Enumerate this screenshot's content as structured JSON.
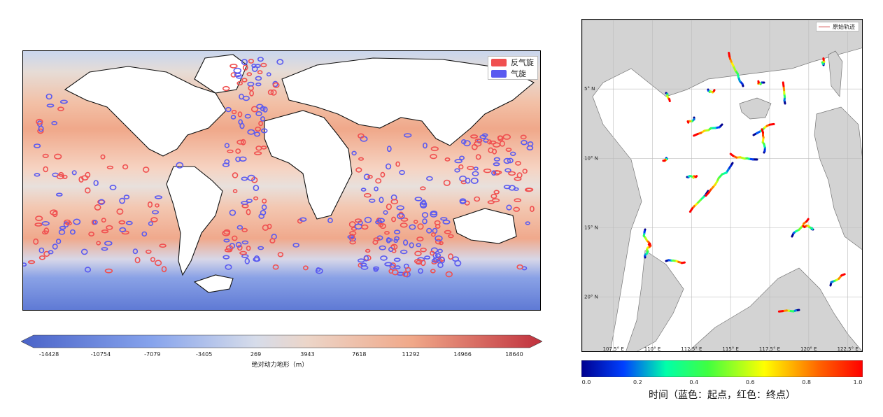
{
  "left_chart": {
    "legend": [
      {
        "label": "反气旋",
        "color": "#f05050"
      },
      {
        "label": "气旋",
        "color": "#5a5af0"
      }
    ],
    "colorbar": {
      "ticks": [
        "-14428",
        "-10754",
        "-7079",
        "-3405",
        "269",
        "3943",
        "7618",
        "11292",
        "14966",
        "18640"
      ],
      "label": "绝对动力地形（m）",
      "cmap": "coolwarm"
    }
  },
  "right_chart": {
    "legend_label": "原始轨迹",
    "legend_color": "#d04040",
    "x_ticks": [
      "107.5° E",
      "110° E",
      "112.5° E",
      "115° E",
      "117.5° E",
      "120° E",
      "122.5° E"
    ],
    "y_ticks": [
      "20° N",
      "15° N",
      "10° N",
      "5° N"
    ],
    "colorbar": {
      "ticks": [
        "0.0",
        "0.2",
        "0.4",
        "0.6",
        "0.8",
        "1.0"
      ],
      "label": "时间（蓝色：起点，红色：终点）",
      "cmap": "jet"
    }
  },
  "chart_data": [
    {
      "type": "heatmap",
      "title": "",
      "variable": "绝对动力地形（m）",
      "colorbar_range": [
        -14428,
        18640
      ],
      "colorbar_ticks": [
        -14428,
        -10754,
        -7079,
        -3405,
        269,
        3943,
        7618,
        11292,
        14966,
        18640
      ],
      "series": [
        {
          "name": "反气旋",
          "color": "#f05050"
        },
        {
          "name": "气旋",
          "color": "#5a5af0"
        }
      ],
      "legend_position": "top-right"
    },
    {
      "type": "line",
      "title": "",
      "xlim": [
        105.5,
        123.5
      ],
      "ylim": [
        1.0,
        25.0
      ],
      "x_ticks": [
        107.5,
        110,
        112.5,
        115,
        117.5,
        120,
        122.5
      ],
      "y_ticks": [
        5,
        10,
        15,
        20
      ],
      "series": [
        {
          "name": "原始轨迹",
          "color": "#d04040"
        }
      ],
      "color_encoding": "time",
      "colorbar_range": [
        0.0,
        1.0
      ],
      "colorbar_ticks": [
        0.0,
        0.2,
        0.4,
        0.6,
        0.8,
        1.0
      ],
      "grid": true,
      "legend_position": "top-right"
    }
  ]
}
